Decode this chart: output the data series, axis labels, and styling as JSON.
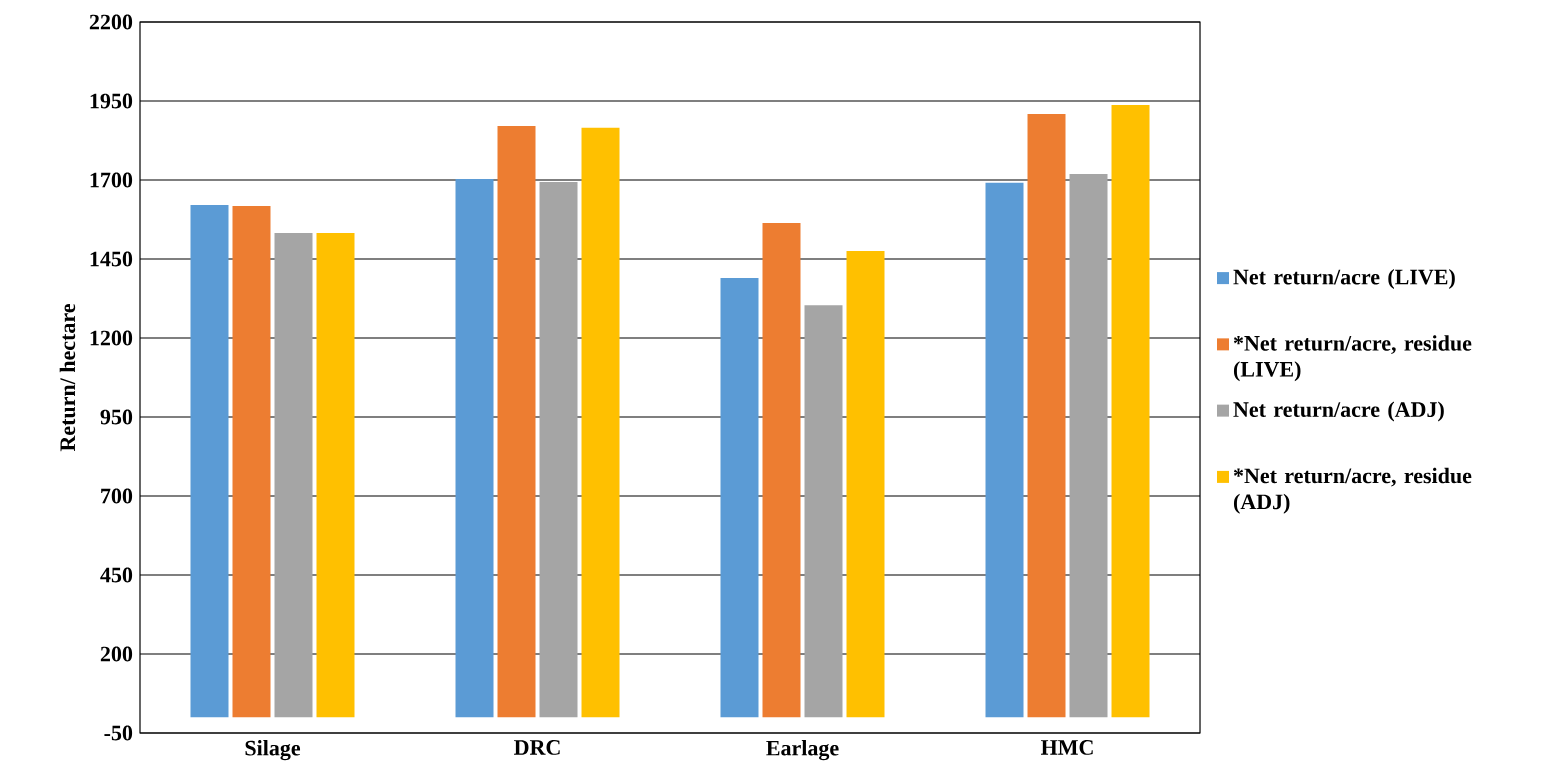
{
  "chart_data": {
    "type": "bar",
    "ylabel": "Return/ hectare",
    "categories": [
      "Silage",
      "DRC",
      "Earlage",
      "HMC"
    ],
    "series": [
      {
        "name": "Net return/acre (LIVE)",
        "color": "#5b9bd5",
        "values": [
          1621,
          1703,
          1390,
          1691
        ]
      },
      {
        "name": "*Net return/acre, residue (LIVE)",
        "color": "#ed7d31",
        "values": [
          1618,
          1871,
          1564,
          1909
        ]
      },
      {
        "name": "Net return/acre (ADJ)",
        "color": "#a5a5a5",
        "values": [
          1532,
          1694,
          1304,
          1719
        ]
      },
      {
        "name": "*Net return/acre, residue (ADJ)",
        "color": "#ffc000",
        "values": [
          1532,
          1865,
          1475,
          1937
        ]
      }
    ],
    "ylim": [
      -50,
      2200
    ],
    "yticks": [
      -50,
      200,
      450,
      700,
      950,
      1200,
      1450,
      1700,
      1950,
      2200
    ],
    "grid": "y",
    "legend": "right"
  }
}
